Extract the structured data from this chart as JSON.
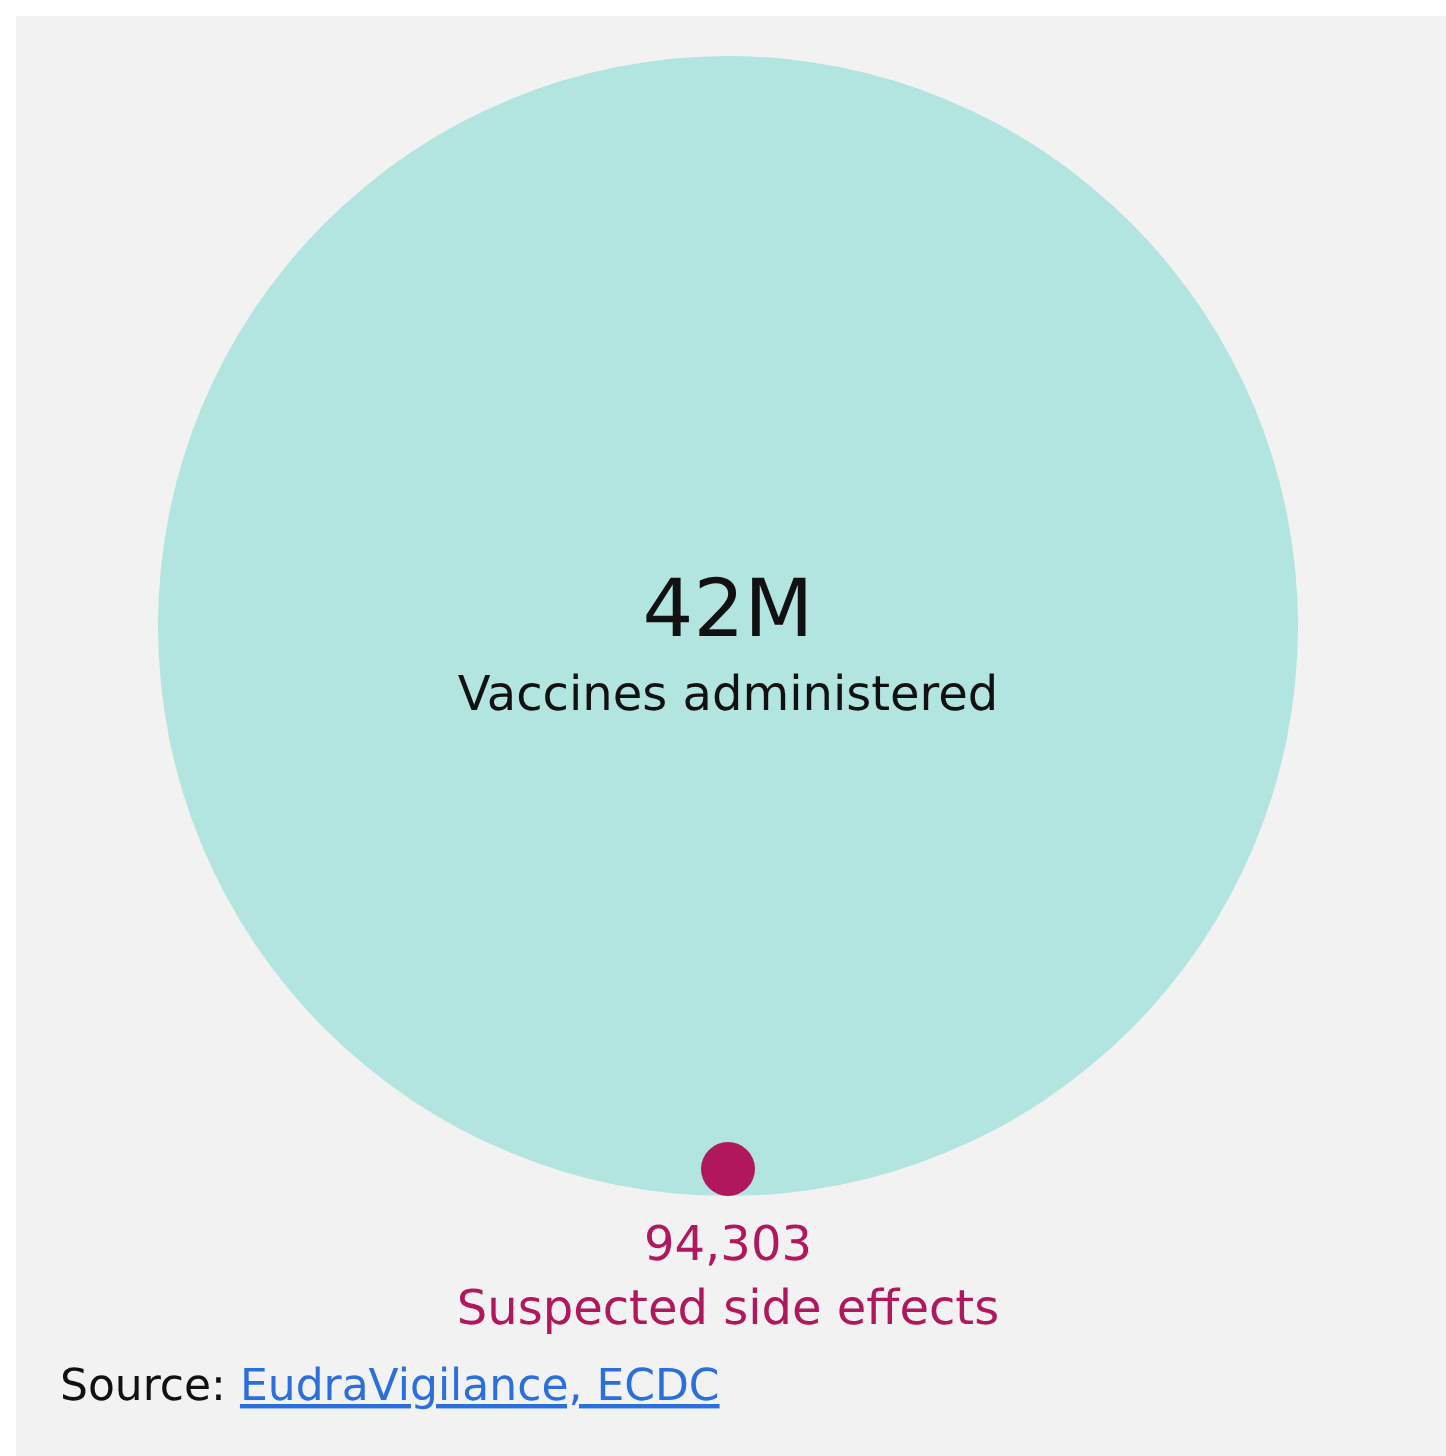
{
  "chart_data": {
    "type": "other",
    "categories": [
      "Vaccines administered",
      "Suspected side effects"
    ],
    "values": [
      42000000,
      94303
    ],
    "value_labels": [
      "42M",
      "94,303"
    ],
    "colors": [
      "#b2e5e0",
      "#b0175c"
    ],
    "annotations": [
      "Source: EudraVigilance, ECDC"
    ]
  }
}
